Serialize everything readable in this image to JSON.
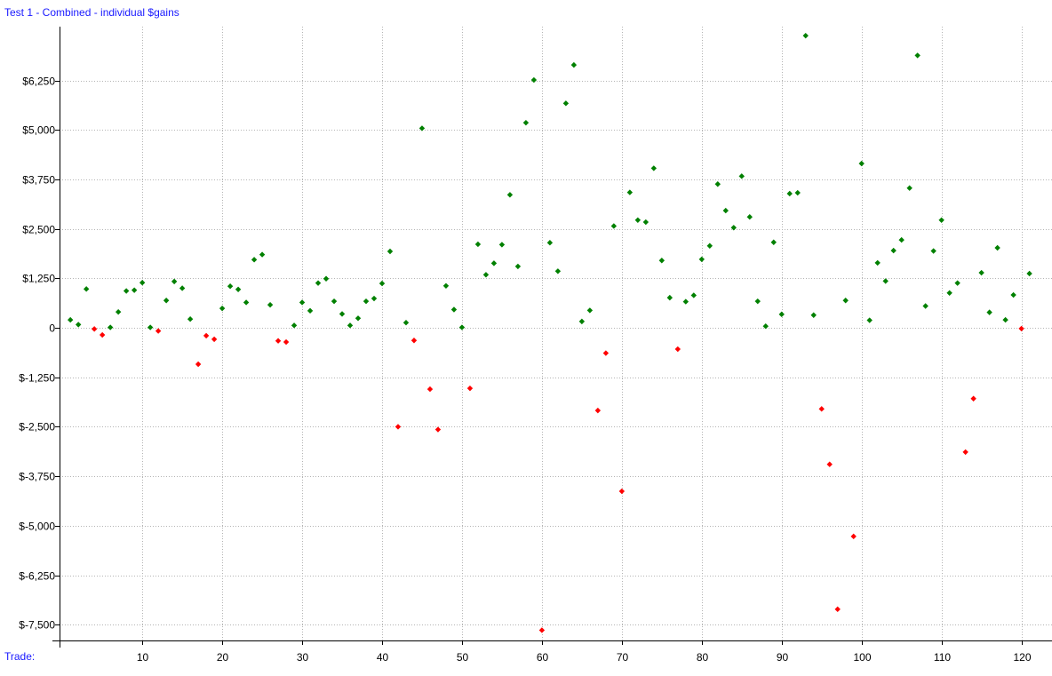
{
  "chart_data": {
    "type": "scatter",
    "title": "Test 1 - Combined - individual $gains",
    "xlabel": "Trade:",
    "ylabel": "",
    "xlim": [
      0,
      123
    ],
    "ylim": [
      -7750,
      7450
    ],
    "y_ticks": [
      6250,
      5000,
      3750,
      2500,
      1250,
      0,
      -1250,
      -2500,
      -3750,
      -5000,
      -6250,
      -7500
    ],
    "y_tick_labels": [
      "$6,250",
      "$5,000",
      "$3,750",
      "$2,500",
      "$1,250",
      "0",
      "$-1,250",
      "$-2,500",
      "$-3,750",
      "$-5,000",
      "$-6,250",
      "$-7,500"
    ],
    "x_ticks": [
      10,
      20,
      30,
      40,
      50,
      60,
      70,
      80,
      90,
      100,
      110,
      120
    ],
    "x_tick_labels": [
      "10",
      "20",
      "30",
      "40",
      "50",
      "60",
      "70",
      "80",
      "90",
      "100",
      "110",
      "120"
    ],
    "grid": true,
    "colors": {
      "gain": "#008000",
      "loss": "#ff0000",
      "title": "#1a1aff",
      "grid": "#b4b4b4"
    },
    "x": [
      1,
      2,
      3,
      4,
      5,
      6,
      7,
      8,
      9,
      10,
      11,
      12,
      13,
      14,
      15,
      16,
      17,
      18,
      19,
      20,
      21,
      22,
      23,
      24,
      25,
      26,
      27,
      28,
      29,
      30,
      31,
      32,
      33,
      34,
      35,
      36,
      37,
      38,
      39,
      40,
      41,
      42,
      43,
      44,
      45,
      46,
      47,
      48,
      49,
      50,
      51,
      52,
      53,
      54,
      55,
      56,
      57,
      58,
      59,
      60,
      61,
      62,
      63,
      64,
      65,
      66,
      67,
      68,
      69,
      70,
      71,
      72,
      73,
      74,
      75,
      76,
      77,
      78,
      79,
      80,
      81,
      82,
      83,
      84,
      85,
      86,
      87,
      88,
      89,
      90,
      91,
      92,
      93,
      94,
      95,
      96,
      97,
      98,
      99,
      100,
      101,
      102,
      103,
      104,
      105,
      106,
      107,
      108,
      109,
      110,
      111,
      112,
      113,
      114,
      115,
      116,
      117,
      118,
      119,
      120,
      121
    ],
    "y": [
      200,
      80,
      980,
      -30,
      -180,
      10,
      400,
      930,
      950,
      1140,
      10,
      -80,
      690,
      1170,
      1000,
      220,
      -920,
      -200,
      -290,
      490,
      1050,
      970,
      640,
      1720,
      1850,
      580,
      -330,
      -360,
      60,
      640,
      430,
      1130,
      1240,
      670,
      350,
      60,
      240,
      670,
      740,
      1120,
      1930,
      -2500,
      130,
      -320,
      5040,
      -1550,
      -2570,
      1060,
      460,
      10,
      -1530,
      2110,
      1340,
      1630,
      2100,
      3360,
      1550,
      5180,
      6260,
      -7640,
      2150,
      1430,
      5670,
      6640,
      160,
      440,
      -2090,
      -640,
      2570,
      -4130,
      3420,
      2720,
      2670,
      4030,
      1700,
      760,
      -540,
      660,
      820,
      1730,
      2070,
      3630,
      2960,
      2530,
      3830,
      2800,
      670,
      40,
      2160,
      340,
      3390,
      3410,
      7380,
      320,
      -2050,
      -3450,
      -7110,
      690,
      -5270,
      4150,
      190,
      1640,
      1180,
      1950,
      2220,
      3530,
      6880,
      550,
      1940,
      2720,
      880,
      1130,
      -3140,
      -1790,
      1390,
      390,
      2020,
      200,
      830,
      -20,
      1370
    ]
  }
}
